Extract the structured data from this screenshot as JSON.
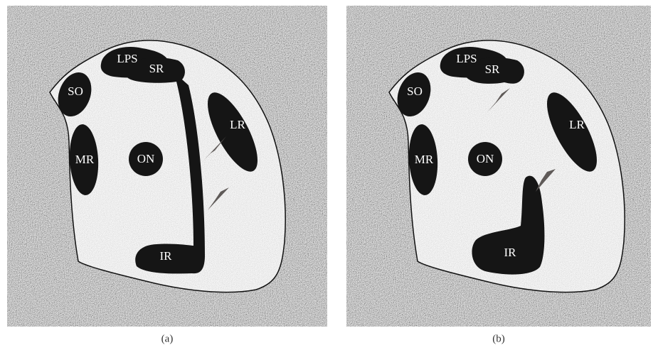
{
  "panels": [
    {
      "caption": "(a)",
      "labels": [
        "LPS",
        "SR",
        "SO",
        "LR",
        "MR",
        "ON",
        "IR"
      ]
    },
    {
      "caption": "(b)",
      "labels": [
        "LPS",
        "SR",
        "SO",
        "LR",
        "MR",
        "ON",
        "IR"
      ]
    }
  ]
}
